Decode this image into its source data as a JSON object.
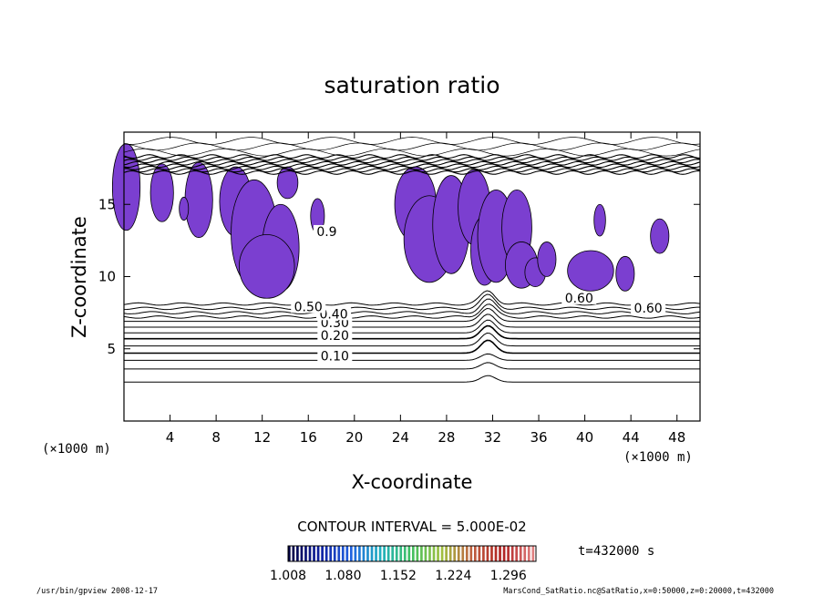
{
  "chart_data": {
    "type": "contour",
    "title": "saturation ratio",
    "xlabel": "X-coordinate",
    "ylabel": "Z-coordinate",
    "x_unit_label": "(×1000 m)",
    "y_unit_label": "(×1000 m)",
    "xlim": [
      0,
      50
    ],
    "ylim": [
      0,
      20
    ],
    "x_ticks": [
      "4",
      "8",
      "12",
      "16",
      "20",
      "24",
      "28",
      "32",
      "36",
      "40",
      "44",
      "48"
    ],
    "y_ticks": [
      "5",
      "10",
      "15"
    ],
    "x_tick_values": [
      4,
      8,
      12,
      16,
      20,
      24,
      28,
      32,
      36,
      40,
      44,
      48
    ],
    "y_tick_values": [
      5,
      10,
      15
    ],
    "contour_interval": "CONTOUR INTERVAL = 5.000E-02",
    "contour_labels": [
      {
        "text": "0.10",
        "x": 18.3,
        "z": 4.4
      },
      {
        "text": "0.20",
        "x": 18.3,
        "z": 5.8
      },
      {
        "text": "0.30",
        "x": 18.3,
        "z": 6.7
      },
      {
        "text": "0.40",
        "x": 18.2,
        "z": 7.3
      },
      {
        "text": "0.50",
        "x": 16.0,
        "z": 7.8
      },
      {
        "text": "0.60",
        "x": 45.5,
        "z": 7.7
      },
      {
        "text": "0.60",
        "x": 39.5,
        "z": 8.4
      },
      {
        "text": "0.9",
        "x": 17.6,
        "z": 13.0
      }
    ],
    "contour_levels_z": [
      2.7,
      3.6,
      4.2,
      4.7,
      5.2,
      5.7,
      6.1,
      6.5,
      6.9,
      7.2,
      7.5,
      7.8,
      8.1
    ],
    "colorbar": {
      "min": 1.008,
      "max": 1.332,
      "tick_labels": [
        "1.008",
        "1.080",
        "1.152",
        "1.224",
        "1.296"
      ],
      "colors": [
        "#000040",
        "#1020a0",
        "#2060e0",
        "#20b0c0",
        "#40c060",
        "#a0c040",
        "#c06040",
        "#b02020",
        "#e08080"
      ]
    },
    "supersaturated_color": "#7b3fd0",
    "time_label": "t=432000 s",
    "footer_left": "/usr/bin/gpview 2008-12-17",
    "footer_right": "MarsCond_SatRatio.nc@SatRatio,x=0:50000,z=0:20000,t=432000"
  }
}
